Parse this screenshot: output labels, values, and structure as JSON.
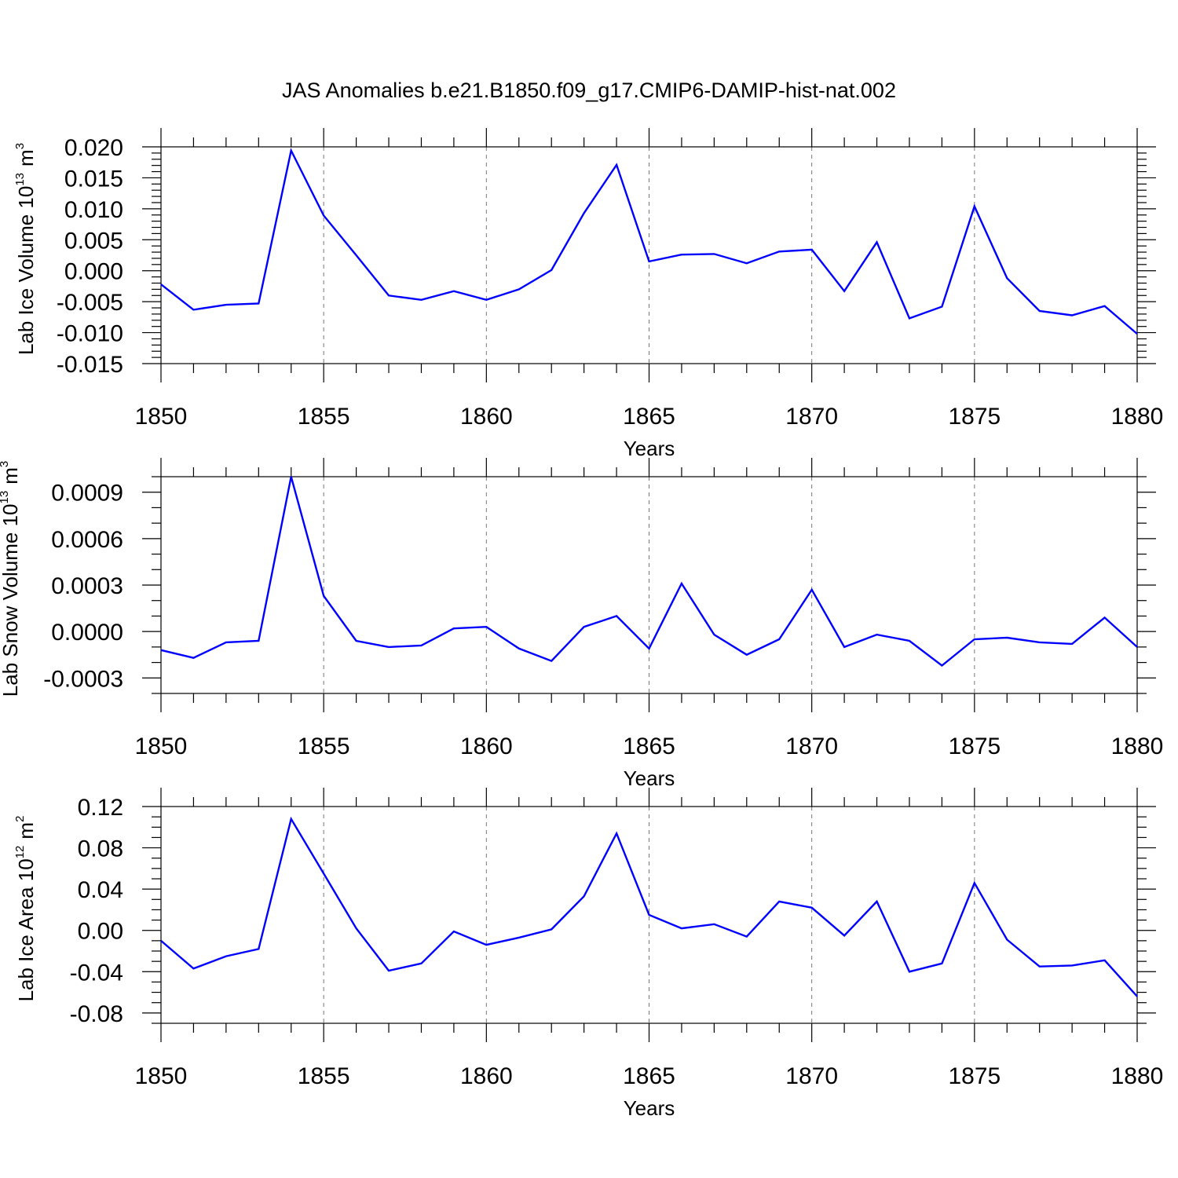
{
  "title": "JAS Anomalies b.e21.B1850.f09_g17.CMIP6-DAMIP-hist-nat.002",
  "colors": {
    "series": "#0000ff",
    "frame": "#000000",
    "grid": "#777777"
  },
  "chart_data": [
    {
      "type": "line",
      "ylabel": "Lab Ice Volume",
      "ylabel_unit": {
        "base": "10",
        "exp": "13",
        "unit": "m",
        "unit_exp": "3"
      },
      "xlabel": "Years",
      "xlim": [
        1850,
        1880
      ],
      "ylim": [
        -0.015,
        0.02
      ],
      "yticks": [
        -0.015,
        -0.01,
        -0.005,
        0.0,
        0.005,
        0.01,
        0.015,
        0.02
      ],
      "yticklabels": [
        "-0.015",
        "-0.010",
        "-0.005",
        "0.000",
        "0.005",
        "0.010",
        "0.015",
        "0.020"
      ],
      "yminor_step": 0.001,
      "xticks": [
        1850,
        1855,
        1860,
        1865,
        1870,
        1875,
        1880
      ],
      "xticklabels": [
        "1850",
        "1855",
        "1860",
        "1865",
        "1870",
        "1875",
        "1880"
      ],
      "grid": "vertical-dashed",
      "x": [
        1850,
        1851,
        1852,
        1853,
        1854,
        1855,
        1856,
        1857,
        1858,
        1859,
        1860,
        1861,
        1862,
        1863,
        1864,
        1865,
        1866,
        1867,
        1868,
        1869,
        1870,
        1871,
        1872,
        1873,
        1874,
        1875,
        1876,
        1877,
        1878,
        1879,
        1880
      ],
      "y": [
        -0.0022,
        -0.0063,
        -0.0055,
        -0.0053,
        0.0194,
        0.0089,
        0.0025,
        -0.004,
        -0.0047,
        -0.0033,
        -0.0047,
        -0.003,
        0.0001,
        0.0093,
        0.0171,
        0.0015,
        0.0026,
        0.0027,
        0.0012,
        0.0031,
        0.0034,
        -0.0033,
        0.0046,
        -0.0077,
        -0.0058,
        0.0104,
        -0.0012,
        -0.0065,
        -0.0072,
        -0.0057,
        -0.0102
      ]
    },
    {
      "type": "line",
      "ylabel": "Lab Snow Volume",
      "ylabel_unit": {
        "base": "10",
        "exp": "13",
        "unit": "m",
        "unit_exp": "3"
      },
      "xlabel": "Years",
      "xlim": [
        1850,
        1880
      ],
      "ylim": [
        -0.0004,
        0.001
      ],
      "yticks": [
        -0.0003,
        0.0,
        0.0003,
        0.0006,
        0.0009
      ],
      "yticklabels": [
        "-0.0003",
        "0.0000",
        "0.0003",
        "0.0006",
        "0.0009"
      ],
      "yminor_step": 0.0001,
      "xticks": [
        1850,
        1855,
        1860,
        1865,
        1870,
        1875,
        1880
      ],
      "xticklabels": [
        "1850",
        "1855",
        "1860",
        "1865",
        "1870",
        "1875",
        "1880"
      ],
      "grid": "vertical-dashed",
      "x": [
        1850,
        1851,
        1852,
        1853,
        1854,
        1855,
        1856,
        1857,
        1858,
        1859,
        1860,
        1861,
        1862,
        1863,
        1864,
        1865,
        1866,
        1867,
        1868,
        1869,
        1870,
        1871,
        1872,
        1873,
        1874,
        1875,
        1876,
        1877,
        1878,
        1879,
        1880
      ],
      "y": [
        -0.00012,
        -0.00017,
        -7e-05,
        -6e-05,
        0.001,
        0.00023,
        -6e-05,
        -0.0001,
        -9e-05,
        2e-05,
        3e-05,
        -0.00011,
        -0.00019,
        3e-05,
        0.0001,
        -0.00011,
        0.00031,
        -2e-05,
        -0.00015,
        -5e-05,
        0.00027,
        -0.0001,
        -2e-05,
        -6e-05,
        -0.00022,
        -5e-05,
        -4e-05,
        -7e-05,
        -8e-05,
        9e-05,
        -0.0001
      ]
    },
    {
      "type": "line",
      "ylabel": "Lab Ice Area",
      "ylabel_unit": {
        "base": "10",
        "exp": "12",
        "unit": "m",
        "unit_exp": "2"
      },
      "xlabel": "Years",
      "xlim": [
        1850,
        1880
      ],
      "ylim": [
        -0.09,
        0.12
      ],
      "yticks": [
        -0.08,
        -0.04,
        0.0,
        0.04,
        0.08,
        0.12
      ],
      "yticklabels": [
        "-0.08",
        "-0.04",
        "0.00",
        "0.04",
        "0.08",
        "0.12"
      ],
      "yminor_step": 0.01,
      "xticks": [
        1850,
        1855,
        1860,
        1865,
        1870,
        1875,
        1880
      ],
      "xticklabels": [
        "1850",
        "1855",
        "1860",
        "1865",
        "1870",
        "1875",
        "1880"
      ],
      "grid": "vertical-dashed",
      "x": [
        1850,
        1851,
        1852,
        1853,
        1854,
        1855,
        1856,
        1857,
        1858,
        1859,
        1860,
        1861,
        1862,
        1863,
        1864,
        1865,
        1866,
        1867,
        1868,
        1869,
        1870,
        1871,
        1872,
        1873,
        1874,
        1875,
        1876,
        1877,
        1878,
        1879,
        1880
      ],
      "y": [
        -0.01,
        -0.037,
        -0.025,
        -0.018,
        0.108,
        0.055,
        0.002,
        -0.039,
        -0.032,
        -0.001,
        -0.014,
        -0.007,
        0.001,
        0.033,
        0.094,
        0.015,
        0.002,
        0.006,
        -0.006,
        0.028,
        0.022,
        -0.005,
        0.028,
        -0.04,
        -0.032,
        0.046,
        -0.009,
        -0.035,
        -0.034,
        -0.029,
        -0.064
      ]
    }
  ]
}
